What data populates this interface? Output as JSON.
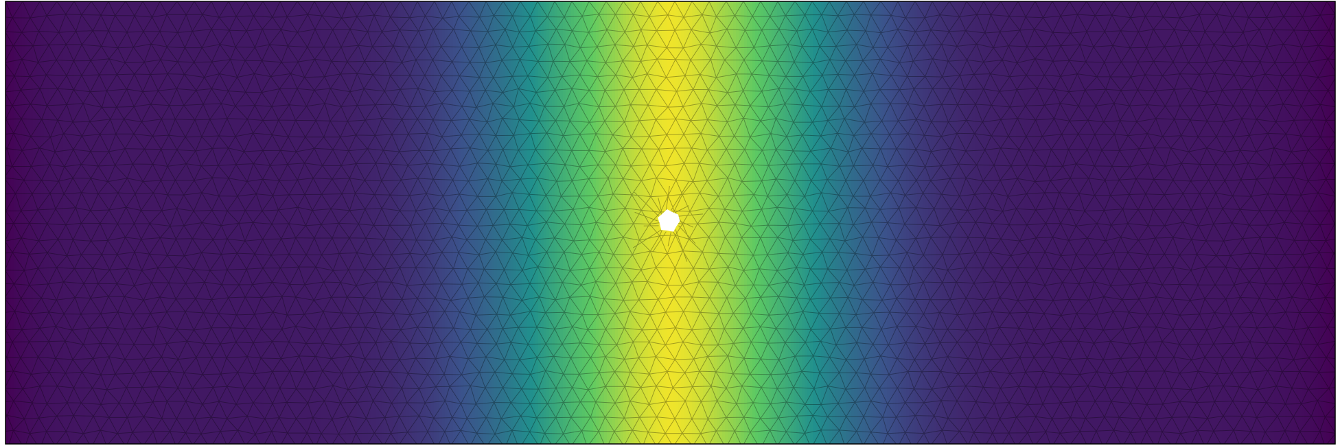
{
  "figure": {
    "kind": "finite-element-mesh",
    "colormap": "viridis",
    "colormap_stops": [
      "#440154",
      "#3b528b",
      "#21908d",
      "#5dc963",
      "#fde725"
    ],
    "edge_color": "#000000",
    "boundary_color": "#000000",
    "hole_color": "#ffffff",
    "field": {
      "description_visible": false,
      "band_profile": "gaussian",
      "peak_value": 0.86,
      "edge_value": 0.0
    }
  }
}
